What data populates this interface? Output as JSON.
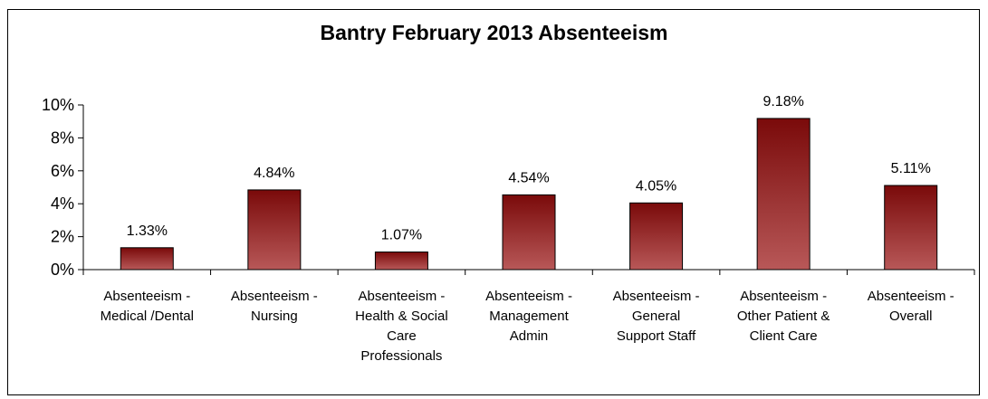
{
  "chart_data": {
    "type": "bar",
    "title": "Bantry February 2013 Absenteeism",
    "xlabel": "",
    "ylabel": "",
    "ylim": [
      0,
      10
    ],
    "y_ticks": [
      "0%",
      "2%",
      "4%",
      "6%",
      "8%",
      "10%"
    ],
    "y_tick_values": [
      0,
      2,
      4,
      6,
      8,
      10
    ],
    "grid": false,
    "legend": "none",
    "bar_color_top": "#7a0a0a",
    "bar_color_bottom": "#b85858",
    "categories": [
      [
        "Absenteeism -",
        "Medical /Dental"
      ],
      [
        "Absenteeism -",
        "Nursing"
      ],
      [
        "Absenteeism -",
        "Health & Social",
        "Care",
        "Professionals"
      ],
      [
        "Absenteeism -",
        "Management",
        "Admin"
      ],
      [
        "Absenteeism -",
        "General",
        "Support Staff"
      ],
      [
        "Absenteeism -",
        "Other Patient &",
        "Client Care"
      ],
      [
        "Absenteeism -",
        "Overall"
      ]
    ],
    "values": [
      1.33,
      4.84,
      1.07,
      4.54,
      4.05,
      9.18,
      5.11
    ],
    "data_labels": [
      "1.33%",
      "4.84%",
      "1.07%",
      "4.54%",
      "4.05%",
      "9.18%",
      "5.11%"
    ]
  }
}
